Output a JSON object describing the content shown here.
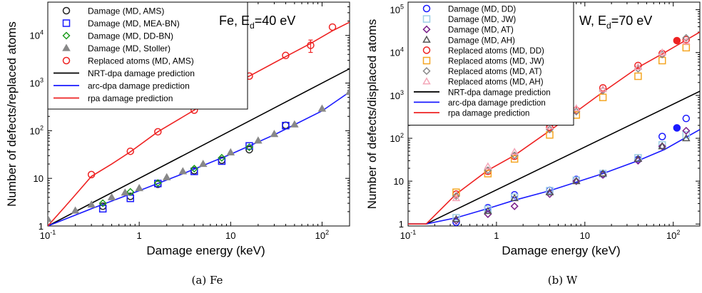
{
  "charts": [
    {
      "caption": "(a) Fe",
      "panel_label_pre": "Fe, E",
      "panel_label_sub": "d",
      "panel_label_post": "=40 eV",
      "xlabel": "Damage energy (keV)",
      "ylabel": "Number of defects/replaced atoms",
      "xticks": [
        {
          "v": 0.1,
          "b": "10",
          "e": "-1"
        },
        {
          "v": 1,
          "b": "1",
          "e": ""
        },
        {
          "v": 10,
          "b": "10",
          "e": ""
        },
        {
          "v": 100,
          "b": "10",
          "e": "2"
        }
      ],
      "yticks": [
        {
          "v": 1,
          "b": "1",
          "e": ""
        },
        {
          "v": 10,
          "b": "10",
          "e": ""
        },
        {
          "v": 100,
          "b": "10",
          "e": "2"
        },
        {
          "v": 1000,
          "b": "10",
          "e": "3"
        },
        {
          "v": 10000,
          "b": "10",
          "e": "4"
        }
      ],
      "legend": [
        {
          "label": "Damage (MD, AMS)",
          "kind": "marker",
          "marker": "circle",
          "color": "#222222"
        },
        {
          "label": "Damage (MD, MEA-BN)",
          "kind": "marker",
          "marker": "square",
          "color": "#1a1aff"
        },
        {
          "label": "Damage (MD, DD-BN)",
          "kind": "marker",
          "marker": "diamond",
          "color": "#1f9d1f"
        },
        {
          "label": "Damage (MD, Stoller)",
          "kind": "marker",
          "marker": "triangle-filled",
          "color": "#888888"
        },
        {
          "label": "Replaced atoms (MD, AMS)",
          "kind": "marker",
          "marker": "circle",
          "color": "#ee2222"
        },
        {
          "label": "NRT-dpa damage prediction",
          "kind": "line",
          "color": "#000000"
        },
        {
          "label": "arc-dpa damage prediction",
          "kind": "line",
          "color": "#1a1aff"
        },
        {
          "label": "rpa damage prediction",
          "kind": "line",
          "color": "#ee2222"
        }
      ]
    },
    {
      "caption": "(b) W",
      "panel_label_pre": "W, E",
      "panel_label_sub": "d",
      "panel_label_post": "=70 eV",
      "xlabel": "Damage energy (keV)",
      "ylabel": "Number of defects/displaced atoms",
      "xticks": [
        {
          "v": 0.1,
          "b": "10",
          "e": "-1"
        },
        {
          "v": 1,
          "b": "1",
          "e": ""
        },
        {
          "v": 10,
          "b": "10",
          "e": ""
        },
        {
          "v": 100,
          "b": "10",
          "e": "2"
        }
      ],
      "yticks": [
        {
          "v": 1,
          "b": "1",
          "e": ""
        },
        {
          "v": 10,
          "b": "10",
          "e": ""
        },
        {
          "v": 100,
          "b": "10",
          "e": "2"
        },
        {
          "v": 1000,
          "b": "10",
          "e": "3"
        },
        {
          "v": 10000,
          "b": "10",
          "e": "4"
        },
        {
          "v": 100000,
          "b": "10",
          "e": "5"
        }
      ],
      "legend": [
        {
          "label": "Damage (MD, DD)",
          "kind": "marker",
          "marker": "circle",
          "color": "#1a1aff"
        },
        {
          "label": "Damage (MD, JW)",
          "kind": "marker",
          "marker": "square",
          "color": "#9ecfe6"
        },
        {
          "label": "Damage (MD, AT)",
          "kind": "marker",
          "marker": "diamond",
          "color": "#7a1f8a"
        },
        {
          "label": "Damage (MD, AH)",
          "kind": "marker",
          "marker": "triangle",
          "color": "#555555"
        },
        {
          "label": "Replaced atoms (MD, DD)",
          "kind": "marker",
          "marker": "circle",
          "color": "#ee2222"
        },
        {
          "label": "Replaced atoms (MD, JW)",
          "kind": "marker",
          "marker": "square",
          "color": "#f5a623"
        },
        {
          "label": "Replaced atoms (MD, AT)",
          "kind": "marker",
          "marker": "diamond",
          "color": "#888888"
        },
        {
          "label": "Replaced atoms (MD, AH)",
          "kind": "marker",
          "marker": "triangle",
          "color": "#f4a6b8"
        },
        {
          "label": "NRT-dpa damage prediction",
          "kind": "line",
          "color": "#000000"
        },
        {
          "label": "arc-dpa damage prediction",
          "kind": "line",
          "color": "#1a1aff"
        },
        {
          "label": "rpa damage prediction",
          "kind": "line",
          "color": "#ee2222"
        }
      ]
    }
  ],
  "chart_data": [
    {
      "type": "scatter",
      "x_scale": "log",
      "y_scale": "log",
      "xlim": [
        0.1,
        200
      ],
      "ylim": [
        1,
        50000
      ],
      "grid": false,
      "legend_position": "top-left",
      "series": [
        {
          "name": "Damage (MD, AMS)",
          "marker": "circle",
          "color": "#222222",
          "fill": false,
          "x": [
            0.4,
            0.8,
            1.6,
            4,
            8,
            16,
            40
          ],
          "y": [
            2.6,
            4.2,
            7.5,
            14.5,
            24,
            40,
            130
          ]
        },
        {
          "name": "Damage (MD, MEA-BN)",
          "marker": "square",
          "color": "#1a1aff",
          "fill": false,
          "x": [
            0.4,
            0.8,
            1.6,
            4,
            8,
            16,
            40
          ],
          "y": [
            2.3,
            3.8,
            7.8,
            14,
            23,
            48,
            128
          ]
        },
        {
          "name": "Damage (MD, DD-BN)",
          "marker": "diamond",
          "color": "#1f9d1f",
          "fill": false,
          "x": [
            0.4,
            0.8,
            1.6,
            4,
            8,
            16
          ],
          "y": [
            3,
            5.2,
            8,
            16,
            27,
            45
          ]
        },
        {
          "name": "Damage (MD, Stoller)",
          "marker": "triangle",
          "color": "#888888",
          "fill": true,
          "x": [
            0.1,
            0.2,
            0.3,
            0.5,
            0.7,
            1,
            2,
            3,
            5,
            10,
            20,
            30,
            50,
            100,
            200
          ],
          "y": [
            1.4,
            2.1,
            2.8,
            4,
            5,
            6.2,
            10.5,
            14,
            20,
            35,
            62,
            85,
            135,
            290,
            650
          ]
        },
        {
          "name": "Replaced atoms (MD, AMS)",
          "marker": "circle",
          "color": "#ee2222",
          "fill": false,
          "x": [
            0.3,
            0.8,
            1.6,
            4,
            8,
            16,
            40,
            75,
            130
          ],
          "y": [
            12,
            37,
            95,
            270,
            760,
            1400,
            3800,
            6200,
            15000
          ],
          "err": [
            0,
            0,
            0,
            0,
            0,
            0,
            0,
            1800,
            0
          ]
        },
        {
          "name": "NRT-dpa damage prediction",
          "line": true,
          "color": "#000000",
          "x": [
            0.1,
            200
          ],
          "y": [
            1,
            2000
          ]
        },
        {
          "name": "arc-dpa damage prediction",
          "line": true,
          "color": "#1a1aff",
          "x": [
            0.1,
            0.3,
            1,
            3,
            10,
            30,
            100,
            200
          ],
          "y": [
            1,
            2.3,
            5.5,
            12.5,
            32,
            82,
            260,
            650
          ]
        },
        {
          "name": "rpa damage prediction",
          "line": true,
          "color": "#ee2222",
          "x": [
            0.1,
            0.15,
            0.2,
            0.3,
            0.5,
            0.8,
            1.6,
            4,
            8,
            16,
            40,
            75,
            130,
            200
          ],
          "y": [
            1,
            2.4,
            4.5,
            11,
            20,
            36,
            95,
            270,
            700,
            1400,
            3600,
            6800,
            12500,
            19000
          ]
        }
      ]
    },
    {
      "type": "scatter",
      "x_scale": "log",
      "y_scale": "log",
      "xlim": [
        0.1,
        200
      ],
      "ylim": [
        0.9,
        150000
      ],
      "grid": false,
      "legend_position": "top-left",
      "series": [
        {
          "name": "Damage (MD, DD)",
          "marker": "circle",
          "color": "#1a1aff",
          "fill": false,
          "x": [
            0.35,
            0.8,
            1.6,
            4,
            8,
            16,
            40,
            75,
            140
          ],
          "y": [
            1.1,
            2.4,
            4.8,
            6.1,
            11,
            14.5,
            32,
            110,
            290
          ]
        },
        {
          "name": "Damage (MD, DD) solid",
          "marker": "circle",
          "color": "#1a1aff",
          "fill": true,
          "x": [
            110
          ],
          "y": [
            175
          ]
        },
        {
          "name": "Damage (MD, JW)",
          "marker": "square",
          "color": "#9ecfe6",
          "fill": false,
          "x": [
            0.35,
            0.8,
            1.6,
            4,
            8,
            16,
            40,
            75,
            140
          ],
          "y": [
            1.4,
            2.2,
            4.2,
            6,
            10.5,
            15,
            35,
            70,
            120
          ]
        },
        {
          "name": "Damage (MD, AT)",
          "marker": "diamond",
          "color": "#7a1f8a",
          "fill": false,
          "x": [
            0.35,
            0.8,
            1.6,
            4,
            8,
            16,
            40,
            75,
            140
          ],
          "y": [
            1.2,
            1.7,
            2.6,
            5,
            10,
            14,
            30,
            65,
            150
          ]
        },
        {
          "name": "Damage (MD, AH)",
          "marker": "triangle",
          "color": "#555555",
          "fill": false,
          "x": [
            0.35,
            0.8,
            1.6,
            4,
            8,
            16,
            40,
            75,
            140
          ],
          "y": [
            1.3,
            2,
            4,
            5.5,
            10,
            15,
            33,
            65,
            100
          ]
        },
        {
          "name": "Replaced atoms (MD, DD)",
          "marker": "circle",
          "color": "#ee2222",
          "fill": false,
          "x": [
            0.35,
            0.8,
            1.6,
            4,
            8,
            16,
            40,
            75,
            140
          ],
          "y": [
            5,
            17,
            38,
            180,
            450,
            1500,
            5000,
            9500,
            20000
          ]
        },
        {
          "name": "Replaced atoms (MD, DD) solid",
          "marker": "circle",
          "color": "#ee2222",
          "fill": true,
          "x": [
            110
          ],
          "y": [
            19000
          ]
        },
        {
          "name": "Replaced atoms (MD, JW)",
          "marker": "square",
          "color": "#f5a623",
          "fill": false,
          "x": [
            0.35,
            0.8,
            1.6,
            4,
            8,
            16,
            40,
            75,
            140
          ],
          "y": [
            5.5,
            15,
            33,
            120,
            350,
            900,
            2800,
            6500,
            13000
          ]
        },
        {
          "name": "Replaced atoms (MD, AT)",
          "marker": "diamond",
          "color": "#888888",
          "fill": false,
          "x": [
            0.35,
            0.8,
            1.6,
            4,
            8,
            16,
            40,
            75,
            140
          ],
          "y": [
            4.5,
            18,
            40,
            160,
            420,
            1300,
            4200,
            9000,
            22000
          ]
        },
        {
          "name": "Replaced atoms (MD, AH)",
          "marker": "triangle",
          "color": "#f4a6b8",
          "fill": false,
          "x": [
            0.35,
            0.8,
            1.6,
            4,
            8,
            16,
            40,
            75,
            140
          ],
          "y": [
            4,
            22,
            48,
            190,
            500,
            1400,
            4600,
            10000,
            18000
          ]
        },
        {
          "name": "NRT-dpa damage prediction",
          "line": true,
          "color": "#000000",
          "x": [
            0.1,
            0.16,
            200
          ],
          "y": [
            1,
            1,
            1250
          ]
        },
        {
          "name": "arc-dpa damage prediction",
          "line": true,
          "color": "#1a1aff",
          "x": [
            0.1,
            0.16,
            0.35,
            0.8,
            1.6,
            4,
            8,
            16,
            40,
            80,
            200
          ],
          "y": [
            1,
            1,
            1.4,
            2.3,
            3.6,
            6,
            9.5,
            15,
            30,
            55,
            160
          ]
        },
        {
          "name": "rpa damage prediction",
          "line": true,
          "color": "#ee2222",
          "x": [
            0.1,
            0.16,
            0.35,
            0.8,
            1.6,
            4,
            8,
            16,
            40,
            80,
            200
          ],
          "y": [
            1,
            1,
            5,
            18,
            40,
            150,
            420,
            1200,
            4500,
            10000,
            30000
          ]
        }
      ]
    }
  ]
}
